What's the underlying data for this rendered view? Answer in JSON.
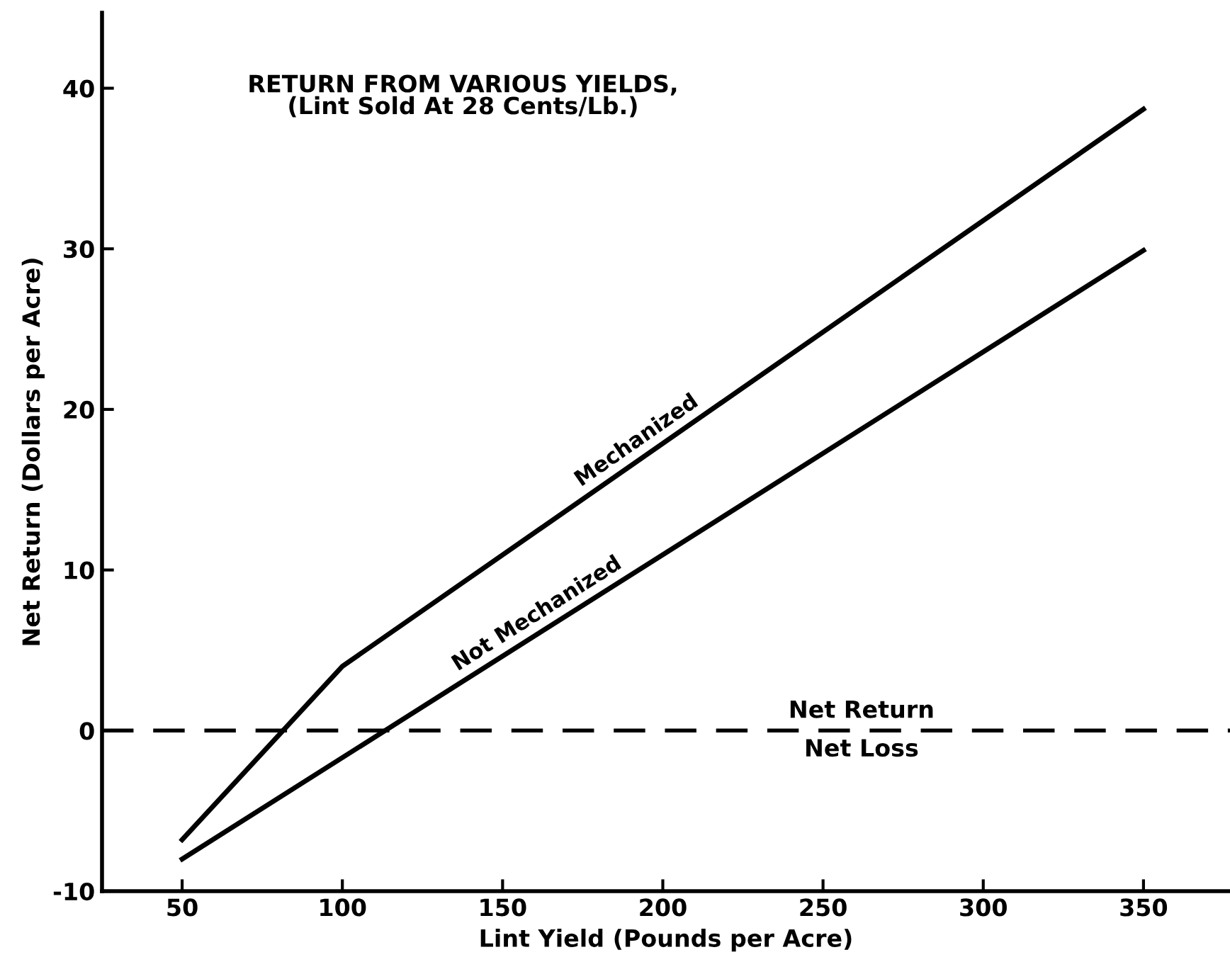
{
  "chart_data": {
    "type": "line",
    "title": "RETURN FROM VARIOUS YIELDS,\n(Lint Sold At 28 Cents/Lb.)",
    "xlabel": "Lint Yield (Pounds per Acre)",
    "ylabel": "Net Return (Dollars per Acre)",
    "series": [
      {
        "name": "Mechanized",
        "color": "#000000",
        "x": [
          50,
          100,
          350
        ],
        "values": [
          -6.8,
          4.0,
          38.7
        ]
      },
      {
        "name": "Not Mechanized",
        "color": "#000000",
        "x": [
          50,
          350
        ],
        "values": [
          -8.0,
          29.9
        ]
      }
    ],
    "xlim": [
      25,
      377
    ],
    "xticks": [
      50,
      100,
      150,
      200,
      250,
      300,
      350
    ],
    "ylim": [
      -10,
      44.7
    ],
    "yticks": [
      -10,
      0,
      10,
      20,
      30,
      40
    ],
    "ref_lines": [
      {
        "axis": "y",
        "value": 0,
        "color": "#000000",
        "line_style": "dashed"
      }
    ],
    "annotations": [
      {
        "text": "Net Return",
        "x": 262,
        "y": 0
      },
      {
        "text": "Net Loss",
        "x": 262,
        "y": 0
      }
    ],
    "grid": false,
    "legend": false,
    "marker": "none",
    "line_style": "solid"
  }
}
